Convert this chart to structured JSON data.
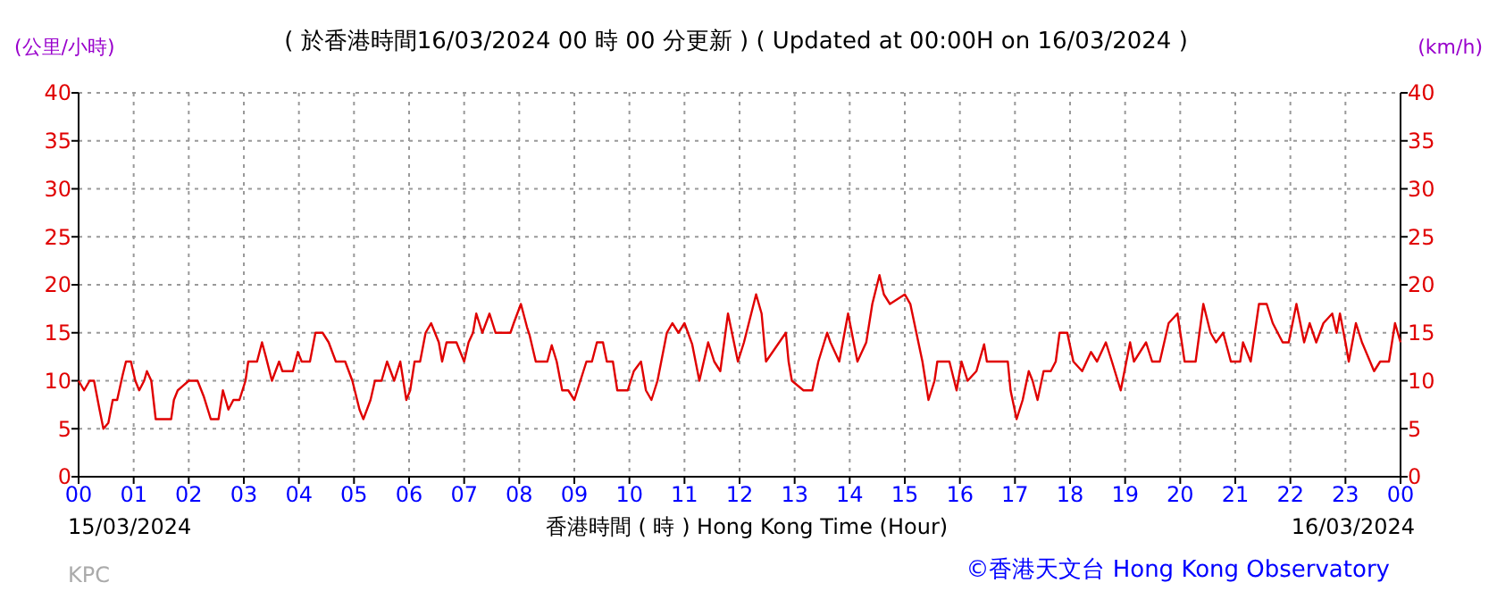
{
  "chart_data": {
    "type": "line",
    "title": "( 於香港時間16/03/2024 00 時 00 分更新 ) ( Updated at 00:00H on 16/03/2024 )",
    "xlabel": "香港時間 ( 時 )  Hong Kong Time (Hour)",
    "ylabel": "(公里/小時)",
    "y2label": "(km/h)",
    "annotations": [
      "15/03/2024",
      "16/03/2024",
      "KPC",
      "©香港天文台 Hong Kong Observatory"
    ],
    "xlim": [
      0,
      24
    ],
    "xticks": [
      {
        "value": 0,
        "label": "00"
      },
      {
        "value": 1,
        "label": "01"
      },
      {
        "value": 2,
        "label": "02"
      },
      {
        "value": 3,
        "label": "03"
      },
      {
        "value": 4,
        "label": "04"
      },
      {
        "value": 5,
        "label": "05"
      },
      {
        "value": 6,
        "label": "06"
      },
      {
        "value": 7,
        "label": "07"
      },
      {
        "value": 8,
        "label": "08"
      },
      {
        "value": 9,
        "label": "09"
      },
      {
        "value": 10,
        "label": "10"
      },
      {
        "value": 11,
        "label": "11"
      },
      {
        "value": 12,
        "label": "12"
      },
      {
        "value": 13,
        "label": "13"
      },
      {
        "value": 14,
        "label": "14"
      },
      {
        "value": 15,
        "label": "15"
      },
      {
        "value": 16,
        "label": "16"
      },
      {
        "value": 17,
        "label": "17"
      },
      {
        "value": 18,
        "label": "18"
      },
      {
        "value": 19,
        "label": "19"
      },
      {
        "value": 20,
        "label": "20"
      },
      {
        "value": 21,
        "label": "21"
      },
      {
        "value": 22,
        "label": "22"
      },
      {
        "value": 23,
        "label": "23"
      },
      {
        "value": 24,
        "label": "00"
      }
    ],
    "ylim": [
      0,
      40
    ],
    "yticks": [
      0,
      5,
      10,
      15,
      20,
      25,
      30,
      35,
      40
    ],
    "y2lim": [
      0,
      40
    ],
    "y2ticks": [
      0,
      5,
      10,
      15,
      20,
      25,
      30,
      35,
      40
    ],
    "grid": true,
    "series": [
      {
        "color": "#e00000",
        "x": [
          0,
          0.1,
          0.2,
          0.28,
          0.38,
          0.45,
          0.54,
          0.62,
          0.7,
          0.8,
          0.86,
          0.95,
          1.03,
          1.1,
          1.19,
          1.24,
          1.32,
          1.4,
          1.68,
          1.73,
          1.8,
          1.9,
          2,
          2.16,
          2.27,
          2.4,
          2.54,
          2.62,
          2.72,
          2.81,
          2.92,
          3.03,
          3.08,
          3.24,
          3.33,
          3.4,
          3.51,
          3.64,
          3.7,
          3.89,
          3.98,
          4.05,
          4.2,
          4.3,
          4.43,
          4.54,
          4.67,
          4.84,
          4.97,
          5.1,
          5.17,
          5.3,
          5.38,
          5.5,
          5.6,
          5.73,
          5.84,
          5.95,
          6.02,
          6.1,
          6.2,
          6.3,
          6.4,
          6.54,
          6.6,
          6.68,
          6.86,
          7,
          7.08,
          7.16,
          7.22,
          7.33,
          7.46,
          7.57,
          7.84,
          7.9,
          8.03,
          8.14,
          8.19,
          8.3,
          8.51,
          8.59,
          8.68,
          8.78,
          8.89,
          9,
          9.11,
          9.22,
          9.32,
          9.41,
          9.52,
          9.59,
          9.7,
          9.78,
          9.97,
          10.08,
          10.21,
          10.3,
          10.4,
          10.51,
          10.68,
          10.78,
          10.89,
          11,
          11.14,
          11.27,
          11.43,
          11.54,
          11.65,
          11.79,
          11.97,
          12.08,
          12.3,
          12.4,
          12.48,
          12.84,
          12.89,
          12.95,
          13.16,
          13.32,
          13.43,
          13.59,
          13.65,
          13.81,
          13.97,
          14.14,
          14.3,
          14.41,
          14.54,
          14.62,
          14.73,
          15,
          15.1,
          15.32,
          15.43,
          15.54,
          15.59,
          15.81,
          15.94,
          16.03,
          16.14,
          16.3,
          16.44,
          16.49,
          16.87,
          16.92,
          17.03,
          17.14,
          17.25,
          17.32,
          17.41,
          17.52,
          17.65,
          17.74,
          17.81,
          17.95,
          18.06,
          18.22,
          18.38,
          18.49,
          18.65,
          18.76,
          18.92,
          19.09,
          19.16,
          19.38,
          19.49,
          19.63,
          19.79,
          19.95,
          20.08,
          20.28,
          20.42,
          20.55,
          20.65,
          20.78,
          20.92,
          21.09,
          21.14,
          21.28,
          21.43,
          21.57,
          21.68,
          21.86,
          21.97,
          22.11,
          22.25,
          22.35,
          22.47,
          22.6,
          22.76,
          22.84,
          22.9,
          23,
          23.06,
          23.19,
          23.3,
          23.52,
          23.63,
          23.79,
          23.9,
          24
        ],
        "values": [
          10,
          9,
          10,
          10,
          7,
          5,
          5.6,
          8,
          8,
          10.6,
          12,
          12,
          10,
          9,
          10,
          11,
          10,
          6,
          6,
          8,
          9,
          9.5,
          10,
          10,
          8.4,
          6,
          6,
          9,
          7,
          8,
          8,
          10,
          12,
          12,
          14,
          12.5,
          10,
          12,
          11,
          11,
          13,
          12,
          12,
          15,
          15,
          14,
          12,
          12,
          10,
          7,
          6,
          8,
          10,
          10,
          12,
          10,
          12,
          8,
          9,
          12,
          12,
          15,
          16,
          14,
          12,
          14,
          14,
          12,
          14,
          15,
          17,
          15,
          17,
          15,
          15,
          16,
          18,
          15.6,
          14.7,
          12,
          12,
          13.7,
          12,
          9,
          9,
          8,
          10,
          12,
          12,
          14,
          14,
          12,
          12,
          9,
          9,
          11,
          12,
          9,
          8,
          10,
          15,
          16,
          15,
          16,
          13.8,
          10,
          14,
          12,
          11,
          17,
          12,
          14,
          19,
          17,
          12,
          15,
          12,
          10,
          9,
          9,
          12,
          15,
          14,
          12,
          17,
          12,
          14,
          18,
          21,
          19,
          18,
          19,
          18,
          12,
          8,
          10,
          12,
          12,
          9,
          12,
          10,
          11,
          13.8,
          12,
          12,
          9,
          6,
          8,
          11,
          10,
          8,
          11,
          11,
          12,
          15,
          15,
          12,
          11,
          13,
          12,
          14,
          12,
          9,
          14,
          12,
          14,
          12,
          12,
          16,
          17,
          12,
          12,
          18,
          15,
          14,
          15,
          12,
          12,
          14,
          12,
          18,
          18,
          16,
          14,
          14,
          18,
          14,
          16,
          14,
          16,
          17,
          15,
          17,
          14,
          12,
          16,
          14,
          11,
          12,
          12,
          16,
          14
        ]
      }
    ]
  }
}
